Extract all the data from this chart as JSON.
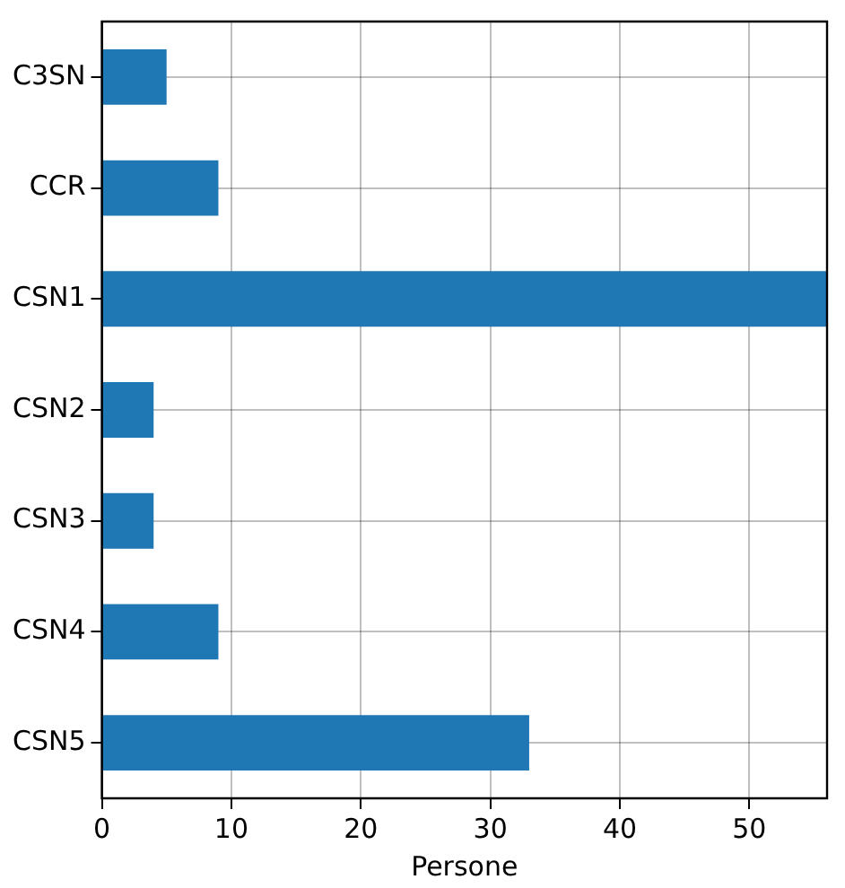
{
  "chart_data": {
    "type": "bar",
    "orientation": "horizontal",
    "xlabel": "Persone",
    "categories": [
      "C3SN",
      "CCR",
      "CSN1",
      "CSN2",
      "CSN3",
      "CSN4",
      "CSN5"
    ],
    "values": [
      5,
      9,
      56,
      4,
      4,
      9,
      33
    ],
    "color": "#1f77b4",
    "xlim": [
      0,
      56
    ],
    "xticks": [
      0,
      10,
      20,
      30,
      40,
      50
    ],
    "grid": true
  }
}
